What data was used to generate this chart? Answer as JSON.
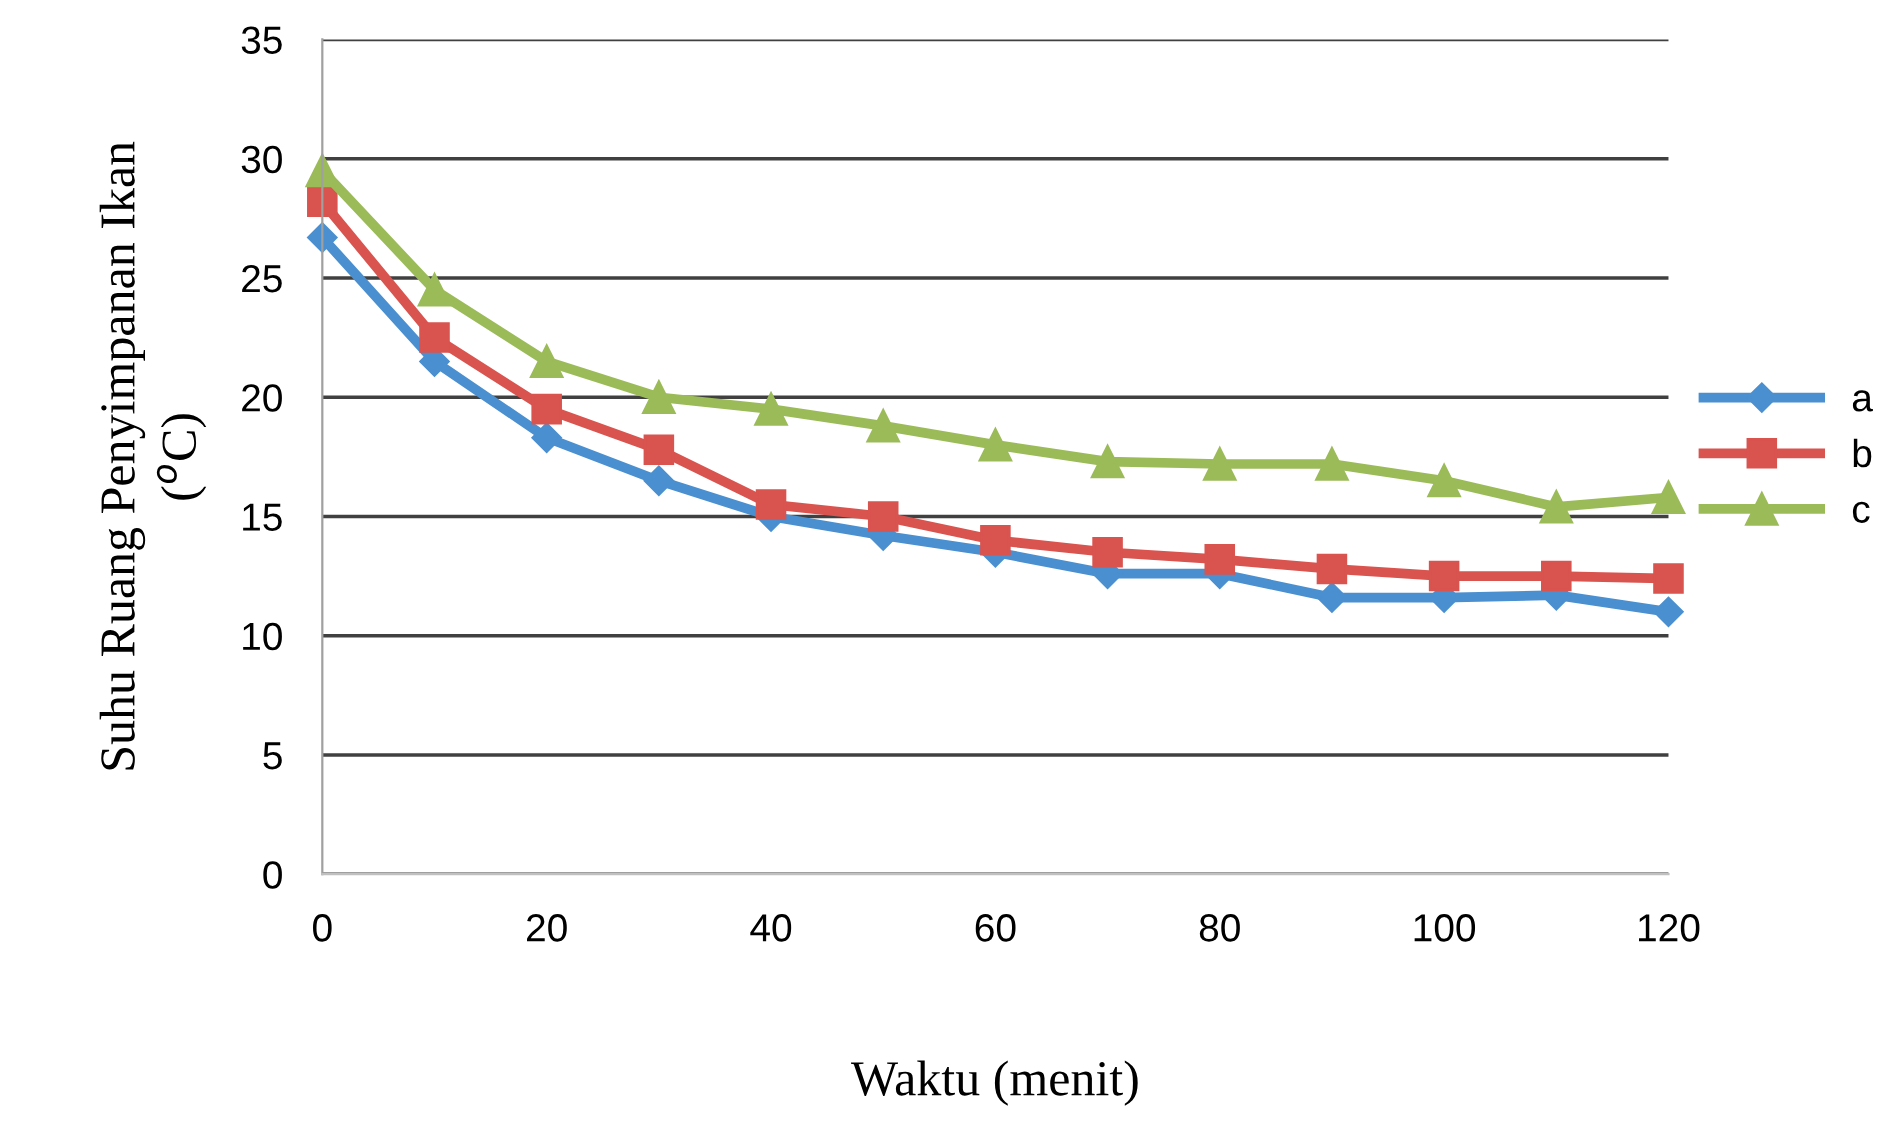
{
  "chart_data": {
    "type": "line",
    "xlabel": "Waktu (menit)",
    "ylabel": "Suhu Ruang Penyimpanan Ikan\n($^{o}$C)",
    "x": [
      0,
      10,
      20,
      30,
      40,
      50,
      60,
      70,
      80,
      90,
      100,
      110,
      120
    ],
    "series": [
      {
        "name": "a",
        "color": "#4a8fcf",
        "marker": "diamond",
        "values": [
          26.7,
          21.5,
          18.3,
          16.5,
          15.0,
          14.2,
          13.5,
          12.6,
          12.6,
          11.6,
          11.6,
          11.7,
          11.0
        ]
      },
      {
        "name": "b",
        "color": "#d9534f",
        "marker": "square",
        "values": [
          28.2,
          22.5,
          19.5,
          17.8,
          15.5,
          15.0,
          14.0,
          13.5,
          13.2,
          12.8,
          12.5,
          12.5,
          12.4
        ]
      },
      {
        "name": "c",
        "color": "#9bbb59",
        "marker": "triangle",
        "values": [
          29.5,
          24.5,
          21.5,
          20.0,
          19.5,
          18.8,
          18.0,
          17.3,
          17.2,
          17.2,
          16.5,
          15.4,
          15.8
        ]
      }
    ],
    "xlim": [
      0,
      120
    ],
    "xticks": [
      0,
      20,
      40,
      60,
      80,
      100,
      120
    ],
    "ylim": [
      0,
      35
    ],
    "yticks": [
      0,
      5,
      10,
      15,
      20,
      25,
      30,
      35
    ],
    "grid": "y",
    "legend": "right",
    "line_style": "solid"
  }
}
